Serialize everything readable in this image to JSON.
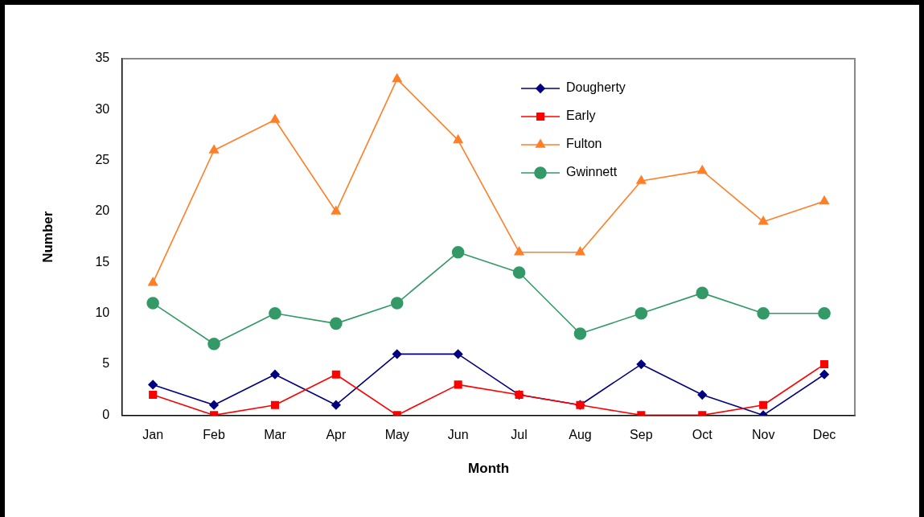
{
  "chart_data": {
    "type": "line",
    "xlabel": "Month",
    "ylabel": "Number",
    "categories": [
      "Jan",
      "Feb",
      "Mar",
      "Apr",
      "May",
      "Jun",
      "Jul",
      "Aug",
      "Sep",
      "Oct",
      "Nov",
      "Dec"
    ],
    "series": [
      {
        "name": "Dougherty",
        "color": "#000080",
        "marker": "diamond",
        "values": [
          3,
          1,
          4,
          1,
          6,
          6,
          2,
          1,
          5,
          2,
          0,
          4
        ]
      },
      {
        "name": "Early",
        "color": "#ff0000",
        "marker": "square",
        "values": [
          2,
          0,
          1,
          4,
          0,
          3,
          2,
          1,
          0,
          0,
          1,
          5
        ]
      },
      {
        "name": "Fulton",
        "color": "#ff7f27",
        "marker": "triangle",
        "values": [
          13,
          26,
          29,
          20,
          33,
          27,
          16,
          16,
          23,
          24,
          19,
          21
        ]
      },
      {
        "name": "Gwinnett",
        "color": "#339966",
        "marker": "circle",
        "values": [
          11,
          7,
          10,
          9,
          11,
          16,
          14,
          8,
          10,
          12,
          10,
          10
        ]
      }
    ],
    "ylim": [
      0,
      35
    ],
    "yticks": [
      0,
      5,
      10,
      15,
      20,
      25,
      30,
      35
    ],
    "grid": false,
    "legend": "top right",
    "line_style": "solid"
  }
}
